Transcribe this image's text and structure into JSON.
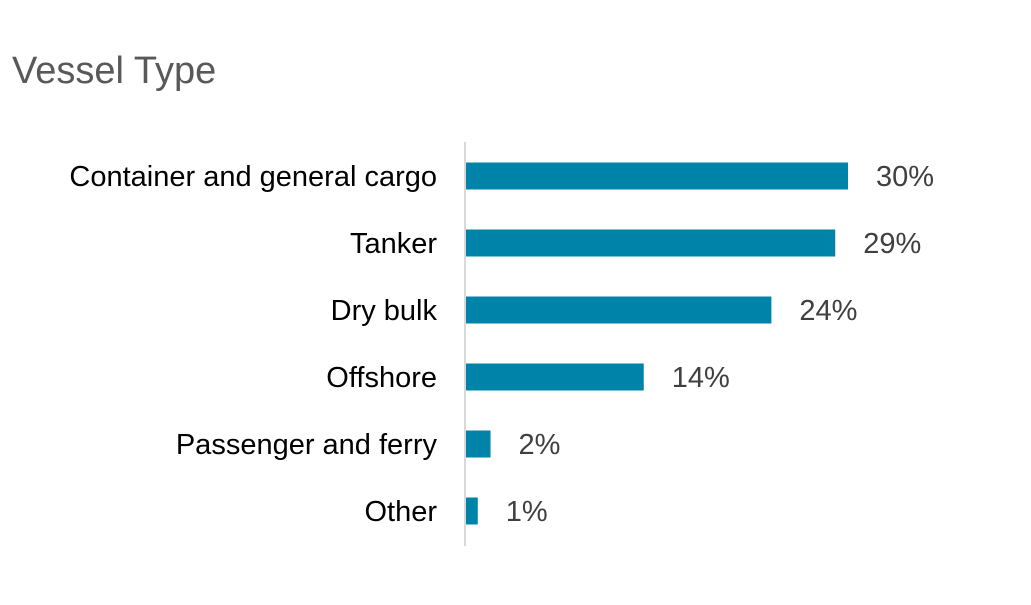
{
  "chart_data": {
    "type": "bar",
    "orientation": "horizontal",
    "title": "Vessel Type",
    "categories": [
      "Container and general cargo",
      "Tanker",
      "Dry bulk",
      "Offshore",
      "Passenger and ferry",
      "Other"
    ],
    "values": [
      30,
      29,
      24,
      14,
      2,
      1
    ],
    "value_labels": [
      "30%",
      "29%",
      "24%",
      "14%",
      "2%",
      "1%"
    ],
    "unit": "%",
    "xlim": [
      0,
      30
    ],
    "grid": false,
    "legend": "none",
    "bar_color": "#0083a9",
    "axis_color": "#d9d9d9"
  }
}
